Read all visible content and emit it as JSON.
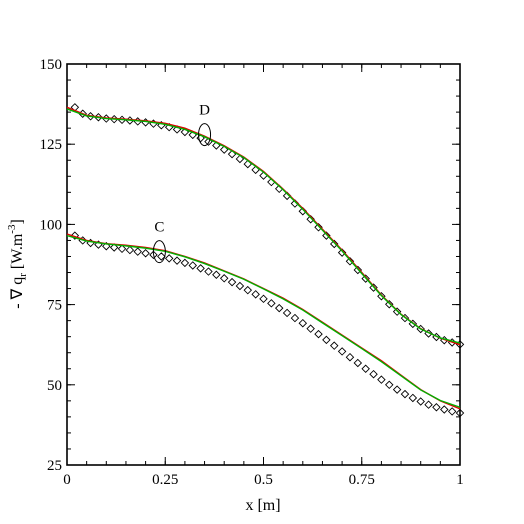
{
  "chart_data": {
    "type": "line",
    "title": "",
    "xlabel": "x [m]",
    "ylabel_parts": {
      "prefix": "- ∇ q",
      "sub": "r",
      "mid": " [W.m",
      "sup": "-3",
      "suffix": "]"
    },
    "xlim": [
      0,
      1
    ],
    "ylim": [
      25,
      150
    ],
    "xticks": [
      0,
      0.25,
      0.5,
      0.75,
      1
    ],
    "xtick_labels": [
      "0",
      "0.25",
      "0.5",
      "0.75",
      "1"
    ],
    "yticks": [
      25,
      50,
      75,
      100,
      125,
      150
    ],
    "ytick_labels": [
      "25",
      "50",
      "75",
      "100",
      "125",
      "150"
    ],
    "grid": false,
    "legend": "none",
    "colors": {
      "red": "#e00000",
      "green": "#00b000",
      "markers": "#000000"
    },
    "annotations": [
      {
        "label": "D",
        "x": 0.35,
        "y": 128
      },
      {
        "label": "C",
        "x": 0.235,
        "y": 91.5
      }
    ],
    "series": [
      {
        "style": "red-line",
        "group": "D",
        "x": [
          0,
          0.05,
          0.1,
          0.15,
          0.2,
          0.25,
          0.3,
          0.35,
          0.4,
          0.45,
          0.5,
          0.55,
          0.6,
          0.65,
          0.7,
          0.75,
          0.8,
          0.85,
          0.9,
          0.95,
          1.0
        ],
        "values": [
          136.5,
          134,
          133.2,
          132.8,
          132.3,
          131.5,
          130,
          127.5,
          124.5,
          121,
          116.5,
          111,
          105,
          98.5,
          92,
          85,
          78,
          72,
          67.5,
          64.5,
          62.5
        ]
      },
      {
        "style": "green-line",
        "group": "D",
        "x": [
          0,
          0.05,
          0.1,
          0.15,
          0.2,
          0.25,
          0.3,
          0.35,
          0.4,
          0.45,
          0.5,
          0.55,
          0.6,
          0.65,
          0.7,
          0.75,
          0.8,
          0.85,
          0.9,
          0.95,
          1.0
        ],
        "values": [
          136,
          133.8,
          133,
          132.6,
          132.1,
          131.2,
          129.6,
          127.3,
          124.3,
          120.8,
          116.3,
          110.8,
          104.7,
          98.2,
          91.7,
          84.7,
          77.8,
          71.9,
          67.4,
          64.6,
          63
        ]
      },
      {
        "style": "diamond-markers",
        "group": "D",
        "x": [
          0.02,
          0.04,
          0.06,
          0.08,
          0.1,
          0.12,
          0.14,
          0.16,
          0.18,
          0.2,
          0.22,
          0.24,
          0.26,
          0.28,
          0.3,
          0.32,
          0.34,
          0.36,
          0.38,
          0.4,
          0.42,
          0.44,
          0.46,
          0.48,
          0.5,
          0.52,
          0.54,
          0.56,
          0.58,
          0.6,
          0.62,
          0.64,
          0.66,
          0.68,
          0.7,
          0.72,
          0.74,
          0.76,
          0.78,
          0.8,
          0.82,
          0.84,
          0.86,
          0.88,
          0.9,
          0.92,
          0.94,
          0.96,
          0.98,
          1.0
        ],
        "values": [
          136.5,
          134.5,
          133.7,
          133.4,
          133,
          132.8,
          132.6,
          132.4,
          132.1,
          131.8,
          131.4,
          130.9,
          130.3,
          129.6,
          128.8,
          127.9,
          126.9,
          125.8,
          124.6,
          123.3,
          121.9,
          120.4,
          118.8,
          117,
          115.2,
          113.2,
          111.1,
          108.9,
          106.5,
          104.1,
          101.6,
          99.1,
          96.5,
          93.9,
          91.2,
          88.5,
          85.8,
          83.1,
          80.3,
          77.6,
          75.1,
          72.8,
          70.8,
          69,
          67.4,
          66,
          64.9,
          63.9,
          63.2,
          62.6
        ]
      },
      {
        "style": "red-line",
        "group": "C",
        "x": [
          0,
          0.05,
          0.1,
          0.15,
          0.2,
          0.25,
          0.3,
          0.35,
          0.4,
          0.45,
          0.5,
          0.55,
          0.6,
          0.65,
          0.7,
          0.75,
          0.8,
          0.85,
          0.9,
          0.95,
          1.0
        ],
        "values": [
          97,
          95,
          94,
          93.5,
          92.8,
          91.8,
          90,
          88,
          85.5,
          83,
          80,
          77,
          73.5,
          69.5,
          65.5,
          61.5,
          57.5,
          53,
          48.5,
          45,
          42.5
        ]
      },
      {
        "style": "green-line",
        "group": "C",
        "x": [
          0,
          0.05,
          0.1,
          0.15,
          0.2,
          0.25,
          0.3,
          0.35,
          0.4,
          0.45,
          0.5,
          0.55,
          0.6,
          0.65,
          0.7,
          0.75,
          0.8,
          0.85,
          0.9,
          0.95,
          1.0
        ],
        "values": [
          96.5,
          94.8,
          93.9,
          93.3,
          92.6,
          91.6,
          89.9,
          87.8,
          85.4,
          82.9,
          79.9,
          76.8,
          73.3,
          69.3,
          65.3,
          61.3,
          57.2,
          52.8,
          48.4,
          45.1,
          43
        ]
      },
      {
        "style": "diamond-markers",
        "group": "C",
        "x": [
          0.02,
          0.04,
          0.06,
          0.08,
          0.1,
          0.12,
          0.14,
          0.16,
          0.18,
          0.2,
          0.22,
          0.24,
          0.26,
          0.28,
          0.3,
          0.32,
          0.34,
          0.36,
          0.38,
          0.4,
          0.42,
          0.44,
          0.46,
          0.48,
          0.5,
          0.52,
          0.54,
          0.56,
          0.58,
          0.6,
          0.62,
          0.64,
          0.66,
          0.68,
          0.7,
          0.72,
          0.74,
          0.76,
          0.78,
          0.8,
          0.82,
          0.84,
          0.86,
          0.88,
          0.9,
          0.92,
          0.94,
          0.96,
          0.98,
          1.0
        ],
        "values": [
          96.5,
          95,
          94.2,
          93.7,
          93.2,
          92.8,
          92.4,
          92,
          91.5,
          91,
          90.5,
          90,
          89.4,
          88.7,
          88,
          87.2,
          86.3,
          85.3,
          84.3,
          83.2,
          82,
          80.8,
          79.5,
          78.2,
          76.8,
          75.4,
          73.9,
          72.4,
          70.8,
          69.2,
          67.5,
          65.8,
          64,
          62.2,
          60.4,
          58.6,
          56.8,
          55,
          53.3,
          51.6,
          50,
          48.5,
          47.1,
          45.9,
          44.8,
          43.8,
          43,
          42.3,
          41.7,
          41.2
        ]
      }
    ]
  }
}
